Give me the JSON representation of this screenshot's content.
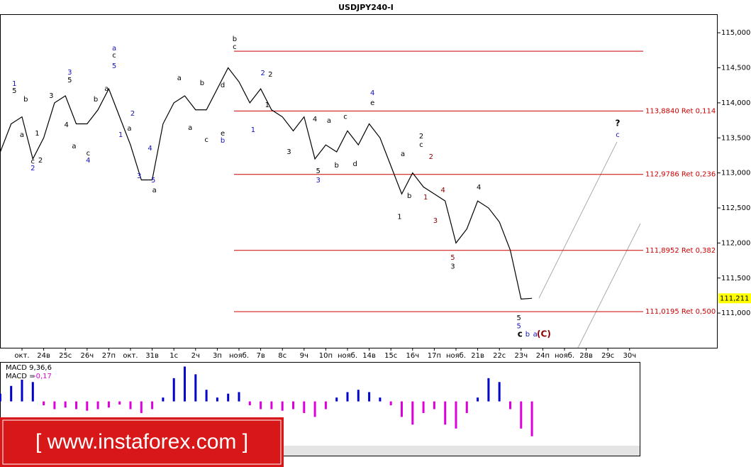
{
  "chart_data": {
    "type": "line",
    "title": "USDJPY240-I",
    "categories": [
      null,
      null,
      "окт.",
      null,
      "24в",
      null,
      "25с",
      null,
      "26ч",
      null,
      "27п",
      null,
      "окт.",
      null,
      "31в",
      null,
      "1с",
      null,
      "2ч",
      null,
      "3п",
      null,
      "нояб.",
      null,
      "7в",
      null,
      "8с",
      null,
      "9ч",
      null,
      "10п",
      null,
      "нояб.",
      null,
      "14в",
      null,
      "15с",
      null,
      "16ч",
      null,
      "17п",
      null,
      "нояб.",
      null,
      "21в",
      null,
      "22с",
      null,
      "23ч",
      null,
      "24п",
      null,
      "нояб.",
      null,
      "28в",
      null,
      "29с",
      null,
      "30ч"
    ],
    "series": [
      {
        "color": "#000000",
        "values": [
          113300,
          113700,
          113800,
          113200,
          113500,
          114000,
          114100,
          113700,
          113700,
          113900,
          114200,
          113800,
          113400,
          112900,
          112900,
          113700,
          114000,
          114100,
          113900,
          113900,
          114200,
          114500,
          114300,
          114000,
          114200,
          113900,
          113800,
          113600,
          113800,
          113200,
          113400,
          113300,
          113600,
          113400,
          113700,
          113500,
          113100,
          112700,
          113000,
          112800,
          112700,
          112600,
          112000,
          112200,
          112600,
          112500,
          112300,
          111900,
          111200,
          111211,
          null,
          null,
          null,
          null,
          null,
          null,
          null,
          null,
          null
        ]
      }
    ],
    "ylim": [
      110505,
      115265
    ],
    "yticks": [
      {
        "value": 111000,
        "label": "111,000"
      },
      {
        "value": 111500,
        "label": "111,500"
      },
      {
        "value": 112000,
        "label": "112,000"
      },
      {
        "value": 112500,
        "label": "112,500"
      },
      {
        "value": 113000,
        "label": "113,000"
      },
      {
        "value": 113500,
        "label": "113,500"
      },
      {
        "value": 114000,
        "label": "114,000"
      },
      {
        "value": 114500,
        "label": "114,500"
      },
      {
        "value": 115000,
        "label": "115,000"
      }
    ],
    "current_price": {
      "value": 111211,
      "label": "111,211"
    },
    "levels": [
      {
        "value": 114737
      },
      {
        "value": 113884,
        "label": "113,8840 Ret 0,114"
      },
      {
        "value": 112979,
        "label": "112,9786 Ret 0,236"
      },
      {
        "value": 111895,
        "label": "111,8952 Ret 0,382"
      },
      {
        "value": 111020,
        "label": "111,0195 Ret 0,500"
      }
    ],
    "level_color": "#cc0000",
    "wave_labels": [
      {
        "color": "#000000",
        "labels": [
          {
            "text": "5",
            "x": 1.3,
            "price": 114169
          },
          {
            "text": "b",
            "x": 2.35,
            "price": 114048
          },
          {
            "text": "a",
            "x": 2.0,
            "price": 113541
          },
          {
            "text": "c",
            "x": 3.0,
            "price": 113166
          },
          {
            "text": "1",
            "x": 3.4,
            "price": 113562
          },
          {
            "text": "2",
            "x": 3.7,
            "price": 113177
          },
          {
            "text": "3",
            "x": 4.7,
            "price": 114098
          },
          {
            "text": "5",
            "x": 6.4,
            "price": 114321
          },
          {
            "text": "4",
            "x": 6.1,
            "price": 113683
          },
          {
            "text": "a",
            "x": 6.8,
            "price": 113379
          },
          {
            "text": "c",
            "x": 8.1,
            "price": 113278
          },
          {
            "text": "b",
            "x": 8.8,
            "price": 114048
          },
          {
            "text": "c",
            "x": 10.5,
            "price": 114676
          },
          {
            "text": "a",
            "x": 9.8,
            "price": 114200
          },
          {
            "text": "a",
            "x": 11.9,
            "price": 113632
          },
          {
            "text": "a",
            "x": 14.2,
            "price": 112751
          },
          {
            "text": "a",
            "x": 16.5,
            "price": 114352
          },
          {
            "text": "a",
            "x": 17.5,
            "price": 113643
          },
          {
            "text": "b",
            "x": 18.6,
            "price": 114281
          },
          {
            "text": "c",
            "x": 19.0,
            "price": 113470
          },
          {
            "text": "e",
            "x": 20.5,
            "price": 113562
          },
          {
            "text": "d",
            "x": 20.5,
            "price": 114250
          },
          {
            "text": "b",
            "x": 21.6,
            "price": 114909
          },
          {
            "text": "c",
            "x": 21.6,
            "price": 114797
          },
          {
            "text": "2",
            "x": 24.9,
            "price": 114402
          },
          {
            "text": "1",
            "x": 24.6,
            "price": 113967
          },
          {
            "text": "3",
            "x": 26.6,
            "price": 113298
          },
          {
            "text": "4",
            "x": 29.0,
            "price": 113764
          },
          {
            "text": "5",
            "x": 29.3,
            "price": 113025
          },
          {
            "text": "a",
            "x": 30.3,
            "price": 113744
          },
          {
            "text": "b",
            "x": 31.0,
            "price": 113106
          },
          {
            "text": "c",
            "x": 31.8,
            "price": 113804
          },
          {
            "text": "d",
            "x": 32.7,
            "price": 113126
          },
          {
            "text": "e",
            "x": 34.3,
            "price": 113997
          },
          {
            "text": "1",
            "x": 36.8,
            "price": 112376
          },
          {
            "text": "a",
            "x": 37.1,
            "price": 113268
          },
          {
            "text": "b",
            "x": 37.7,
            "price": 112670
          },
          {
            "text": "2",
            "x": 38.8,
            "price": 113521
          },
          {
            "text": "c",
            "x": 38.8,
            "price": 113400
          },
          {
            "text": "3",
            "x": 41.7,
            "price": 111667
          },
          {
            "text": "4",
            "x": 44.1,
            "price": 112792
          },
          {
            "text": "5",
            "x": 47.8,
            "price": 110928
          },
          {
            "text": "c",
            "x": 47.9,
            "price": 110695
          },
          {
            "text": "?",
            "x": 56.9,
            "price": 113703
          }
        ]
      },
      {
        "color": "#1010c0",
        "labels": [
          {
            "text": "1",
            "x": 1.3,
            "price": 114271
          },
          {
            "text": "2",
            "x": 3.0,
            "price": 113065
          },
          {
            "text": "3",
            "x": 6.4,
            "price": 114433
          },
          {
            "text": "4",
            "x": 8.1,
            "price": 113177
          },
          {
            "text": "a",
            "x": 10.5,
            "price": 114777
          },
          {
            "text": "5",
            "x": 10.5,
            "price": 114524
          },
          {
            "text": "1",
            "x": 11.1,
            "price": 113541
          },
          {
            "text": "2",
            "x": 12.2,
            "price": 113845
          },
          {
            "text": "3",
            "x": 12.8,
            "price": 112954
          },
          {
            "text": "4",
            "x": 13.8,
            "price": 113349
          },
          {
            "text": "5",
            "x": 14.1,
            "price": 112893
          },
          {
            "text": "b",
            "x": 20.5,
            "price": 113460
          },
          {
            "text": "2",
            "x": 24.2,
            "price": 114423
          },
          {
            "text": "1",
            "x": 23.3,
            "price": 113612
          },
          {
            "text": "3",
            "x": 29.3,
            "price": 112893
          },
          {
            "text": "4",
            "x": 34.3,
            "price": 114139
          },
          {
            "text": "5",
            "x": 47.8,
            "price": 110816
          },
          {
            "text": "b",
            "x": 48.6,
            "price": 110695
          },
          {
            "text": "a",
            "x": 49.3,
            "price": 110695
          },
          {
            "text": "c",
            "x": 56.9,
            "price": 113541
          }
        ]
      },
      {
        "color": "#8b0000",
        "labels": [
          {
            "text": "2",
            "x": 39.7,
            "price": 113227
          },
          {
            "text": "1",
            "x": 39.2,
            "price": 112650
          },
          {
            "text": "4",
            "x": 40.8,
            "price": 112751
          },
          {
            "text": "3",
            "x": 40.1,
            "price": 112316
          },
          {
            "text": "5",
            "x": 41.7,
            "price": 111789
          },
          {
            "text": "(C)",
            "x": 50.1,
            "price": 110695
          }
        ]
      }
    ],
    "macd": {
      "title": "MACD 9,36,6",
      "value_text": "MACD =",
      "value": "-0,17",
      "positive_color": "#0000cc",
      "negative_color": "#dd00dd",
      "ylim": [
        -0.7,
        0.5
      ],
      "values": [
        0.1,
        0.2,
        0.28,
        0.25,
        -0.05,
        -0.1,
        -0.08,
        -0.1,
        -0.12,
        -0.1,
        -0.08,
        -0.04,
        -0.1,
        -0.15,
        -0.1,
        0.05,
        0.3,
        0.45,
        0.35,
        0.15,
        0.05,
        0.1,
        0.12,
        -0.05,
        -0.1,
        -0.1,
        -0.12,
        -0.1,
        -0.15,
        -0.2,
        -0.1,
        0.05,
        0.12,
        0.15,
        0.12,
        0.05,
        -0.05,
        -0.2,
        -0.3,
        -0.15,
        -0.1,
        -0.3,
        -0.35,
        -0.15,
        0.05,
        0.3,
        0.25,
        -0.1,
        -0.35,
        -0.45,
        null,
        null,
        null,
        null,
        null,
        null,
        null,
        null,
        null
      ]
    },
    "watermark": "[ www.instaforex.com ]"
  }
}
